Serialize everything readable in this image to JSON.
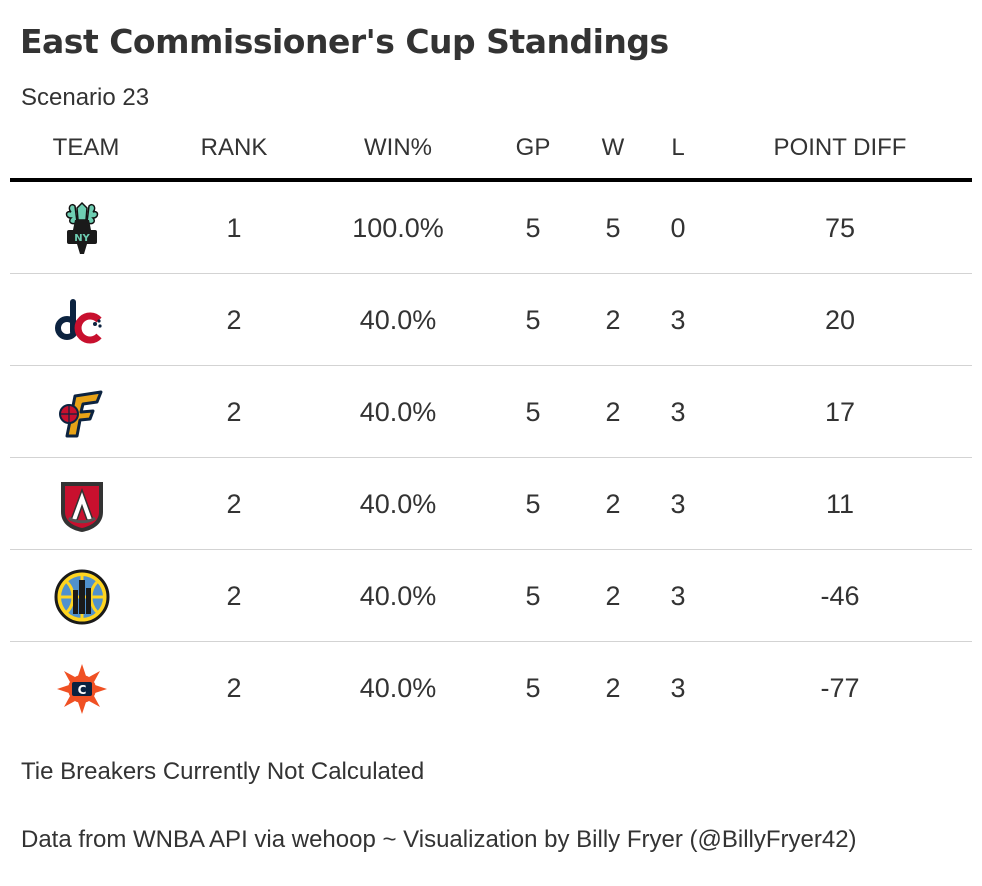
{
  "title": "East Commissioner's Cup Standings",
  "subtitle": "Scenario 23",
  "columns": {
    "team": "TEAM",
    "rank": "RANK",
    "win_pct": "WIN%",
    "gp": "GP",
    "w": "W",
    "l": "L",
    "point_diff": "POINT DIFF"
  },
  "rows": [
    {
      "logo": "new-york-liberty-logo",
      "rank": "1",
      "win_pct": "100.0%",
      "gp": "5",
      "w": "5",
      "l": "0",
      "point_diff": "75"
    },
    {
      "logo": "washington-mystics-logo",
      "rank": "2",
      "win_pct": "40.0%",
      "gp": "5",
      "w": "2",
      "l": "3",
      "point_diff": "20"
    },
    {
      "logo": "indiana-fever-logo",
      "rank": "2",
      "win_pct": "40.0%",
      "gp": "5",
      "w": "2",
      "l": "3",
      "point_diff": "17"
    },
    {
      "logo": "atlanta-dream-logo",
      "rank": "2",
      "win_pct": "40.0%",
      "gp": "5",
      "w": "2",
      "l": "3",
      "point_diff": "11"
    },
    {
      "logo": "chicago-sky-logo",
      "rank": "2",
      "win_pct": "40.0%",
      "gp": "5",
      "w": "2",
      "l": "3",
      "point_diff": "-46"
    },
    {
      "logo": "connecticut-sun-logo",
      "rank": "2",
      "win_pct": "40.0%",
      "gp": "5",
      "w": "2",
      "l": "3",
      "point_diff": "-77"
    }
  ],
  "footnote": "Tie Breakers Currently Not Calculated",
  "source": "Data from WNBA API via wehoop ~ Visualization by Billy Fryer (@BillyFryer42)",
  "colors": {
    "text": "#333333",
    "header_rule": "#000000",
    "row_rule": "#d3d3d3"
  }
}
